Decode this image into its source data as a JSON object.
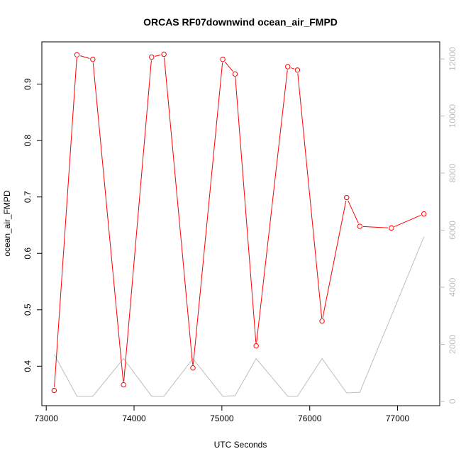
{
  "chart_data": {
    "type": "line",
    "title": "ORCAS RF07downwind ocean_air_FMPD",
    "xlabel": "UTC Seconds",
    "ylabel": "ocean_air_FMPD",
    "xlim": [
      72950,
      77480
    ],
    "ylim": [
      0.33,
      0.975
    ],
    "y2lim": [
      -150,
      12600
    ],
    "x_ticks": [
      73000,
      74000,
      75000,
      76000,
      77000
    ],
    "y_ticks": [
      0.4,
      0.5,
      0.6,
      0.7,
      0.8,
      0.9
    ],
    "y2_ticks": [
      0,
      2000,
      4000,
      6000,
      8000,
      10000,
      12000
    ],
    "x_tick_labels": [
      "73000",
      "74000",
      "75000",
      "76000",
      "77000"
    ],
    "y_tick_labels": [
      "0.4",
      "0.5",
      "0.6",
      "0.7",
      "0.8",
      "0.9"
    ],
    "y2_tick_labels": [
      "0",
      "2000",
      "4000",
      "6000",
      "8000",
      "10000",
      "12000"
    ],
    "grid": false,
    "colors": {
      "primary": "#ff0000",
      "secondary": "#bebebe"
    },
    "series": [
      {
        "axis": "left",
        "marker": "open-circle",
        "x": [
          73090,
          73350,
          73530,
          73880,
          74200,
          74340,
          74670,
          75010,
          75150,
          75390,
          75750,
          75860,
          76140,
          76420,
          76570,
          76930,
          77300
        ],
        "y": [
          0.357,
          0.952,
          0.944,
          0.367,
          0.948,
          0.953,
          0.397,
          0.944,
          0.918,
          0.436,
          0.931,
          0.925,
          0.48,
          0.699,
          0.648,
          0.645,
          0.67
        ]
      },
      {
        "axis": "right",
        "marker": "none",
        "x": [
          73090,
          73350,
          73530,
          73880,
          74200,
          74340,
          74670,
          75010,
          75150,
          75390,
          75750,
          75860,
          76140,
          76420,
          76570,
          76930,
          77300
        ],
        "y": [
          1650,
          180,
          180,
          1500,
          180,
          180,
          1500,
          180,
          200,
          1500,
          180,
          180,
          1500,
          300,
          320,
          3000,
          5770
        ]
      }
    ]
  }
}
